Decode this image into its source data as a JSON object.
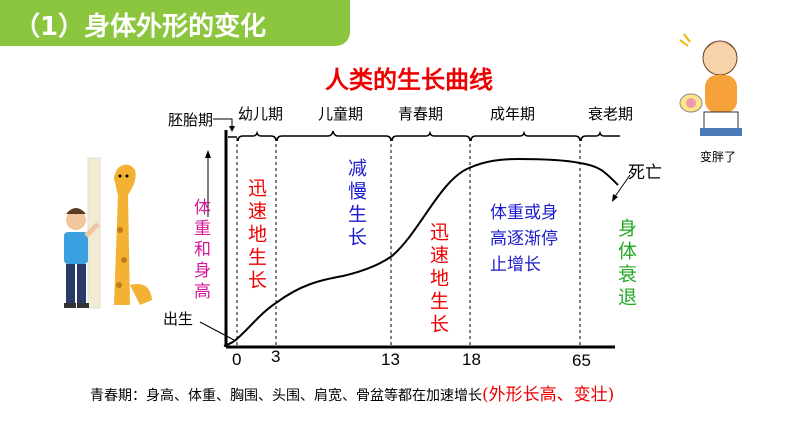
{
  "title": "（1）身体外形的变化",
  "chart_title": "人类的生长曲线",
  "y_axis_label": "体重和身高",
  "periods": [
    "胚胎期",
    "幼儿期",
    "儿童期",
    "青春期",
    "成年期",
    "衰老期"
  ],
  "ticks": [
    "0",
    "3",
    "13",
    "18",
    "65"
  ],
  "annotations": {
    "birth": "出生",
    "death": "死亡",
    "infant_growth": "迅速地生长",
    "child_growth": "减慢生长",
    "puberty_growth": "迅速地生长",
    "adult": "体重或身高逐渐停止增长",
    "adult_lines": [
      "体重或身",
      "高逐渐停",
      "止增长"
    ],
    "aging": "身体衰退"
  },
  "sticker_caption": "变胖了",
  "footnote": {
    "text": "青春期：身高、体重、胸围、头围、肩宽、骨盆等都在加速增长",
    "highlight": "(外形长高、变壮)"
  },
  "colors": {
    "title_bar": "#8cc63e",
    "red": "#ee0000",
    "blue": "#1a1acc",
    "magenta": "#d4189c",
    "green": "#22aa22"
  }
}
